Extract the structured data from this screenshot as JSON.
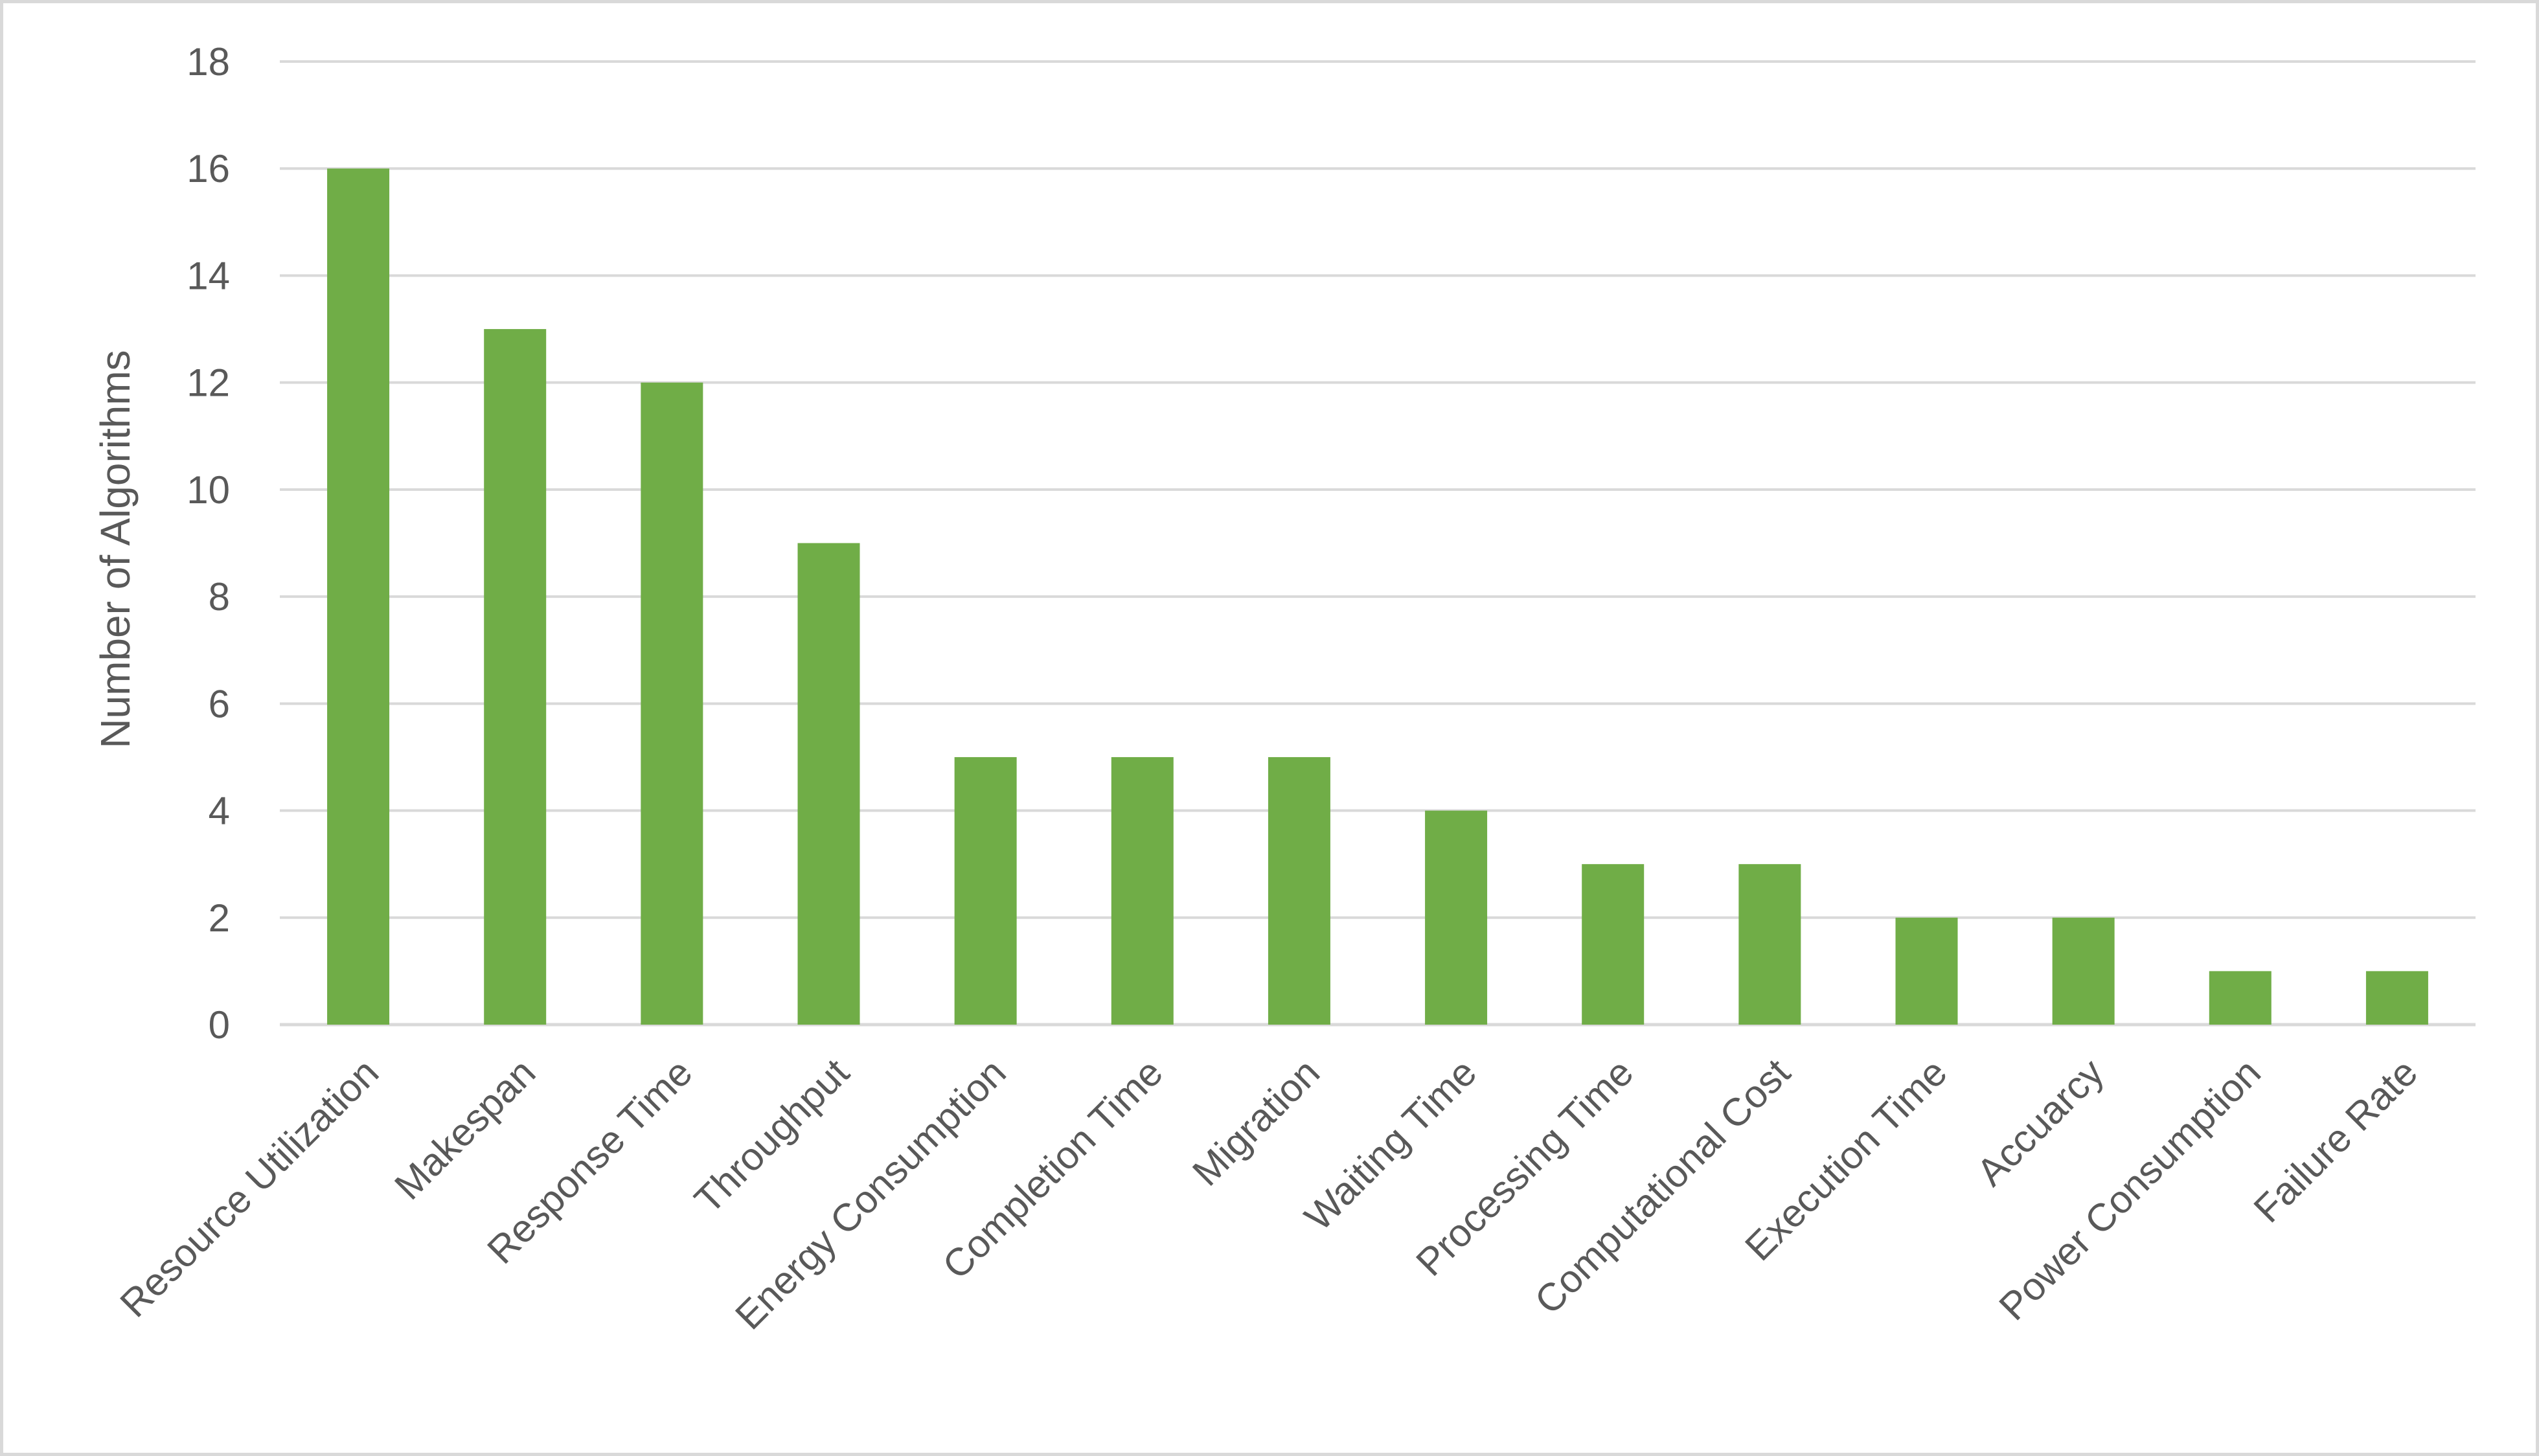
{
  "chart_data": {
    "type": "bar",
    "categories": [
      "Resource Utilization",
      "Makespan",
      "Response Time",
      "Throughput",
      "Energy Consumption",
      "Completion Time",
      "Migration",
      "Waiting Time",
      "Processing Time",
      "Computational Cost",
      "Execution Time",
      "Accuarcy",
      "Power Consumption",
      "Failure Rate"
    ],
    "values": [
      16,
      13,
      12,
      9,
      5,
      5,
      5,
      4,
      3,
      3,
      2,
      2,
      1,
      1
    ],
    "title": "",
    "xlabel": "",
    "ylabel": "Number  of Algorithms",
    "ylim": [
      0,
      18
    ],
    "yticks": [
      0,
      2,
      4,
      6,
      8,
      10,
      12,
      14,
      16,
      18
    ],
    "grid": true,
    "legend": "none",
    "bar_color": "#70ad47",
    "grid_color": "#d9d9d9",
    "text_color": "#595959"
  }
}
